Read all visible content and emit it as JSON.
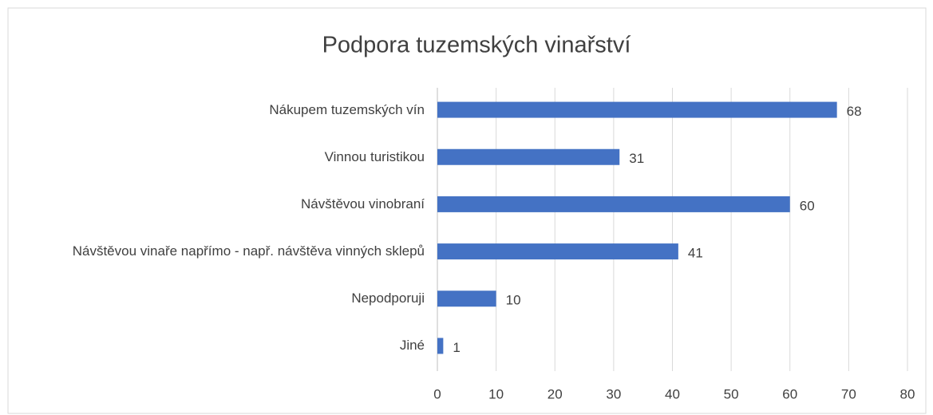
{
  "chart_data": {
    "type": "bar",
    "orientation": "horizontal",
    "title": "Podpora tuzemských vinařství",
    "categories": [
      "Nákupem tuzemských vín",
      "Vinnou turistikou",
      "Návštěvou vinobraní",
      "Návštěvou vinaře napřímo - např. návštěva vinných sklepů",
      "Nepodporuji",
      "Jiné"
    ],
    "values": [
      68,
      31,
      60,
      41,
      10,
      1
    ],
    "color": "#4472c4",
    "xlim": [
      0,
      80
    ],
    "xticks": [
      0,
      10,
      20,
      30,
      40,
      50,
      60,
      70,
      80
    ],
    "grid": true
  }
}
